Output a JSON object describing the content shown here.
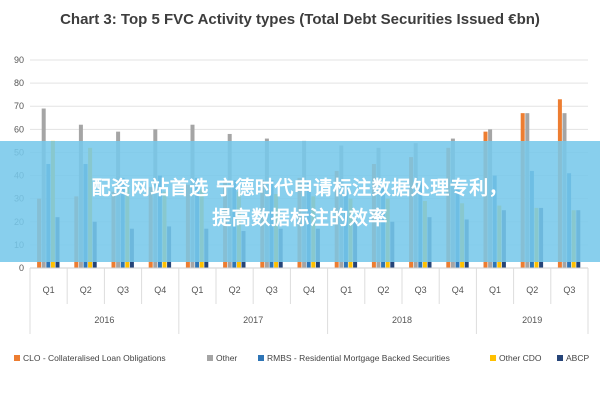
{
  "chart_data": {
    "type": "bar",
    "title": "Chart 3: Top 5 FVC Activity types (Total Debt Securities Issued €bn)",
    "ylim": [
      0,
      90
    ],
    "yticks": [
      0,
      10,
      20,
      30,
      40,
      50,
      60,
      70,
      80,
      90
    ],
    "categories": [
      "Q1",
      "Q2",
      "Q3",
      "Q4",
      "Q1",
      "Q2",
      "Q3",
      "Q4",
      "Q1",
      "Q2",
      "Q3",
      "Q4",
      "Q1",
      "Q2",
      "Q3"
    ],
    "years": [
      {
        "label": "2016",
        "quarters": 4
      },
      {
        "label": "2017",
        "quarters": 4
      },
      {
        "label": "2018",
        "quarters": 4
      },
      {
        "label": "2019",
        "quarters": 3
      }
    ],
    "grid": true,
    "legend_position": "bottom",
    "series": [
      {
        "name": "CLO - Collateralised Loan Obligations",
        "color": "#ed7d31",
        "values": [
          30,
          31,
          33,
          35,
          36,
          37,
          38,
          39,
          42,
          45,
          48,
          52,
          59,
          67,
          73
        ]
      },
      {
        "name": "Other",
        "color": "#a5a5a5",
        "values": [
          69,
          62,
          59,
          60,
          62,
          58,
          56,
          55,
          53,
          52,
          54,
          56,
          60,
          67,
          67
        ]
      },
      {
        "name": "RMBS - Residential Mortgage Backed Securities",
        "color": "#2e75b6",
        "values": [
          45,
          45,
          39,
          40,
          39,
          38,
          38,
          37,
          36,
          35,
          37,
          38,
          40,
          42,
          41
        ]
      },
      {
        "name": "Other CDO",
        "color": "#ffc000",
        "values": [
          55,
          52,
          35,
          33,
          34,
          33,
          32,
          31,
          30,
          30,
          29,
          28,
          27,
          26,
          25
        ]
      },
      {
        "name": "ABCP",
        "color": "#264478",
        "values": [
          22,
          20,
          17,
          18,
          17,
          16,
          17,
          17,
          21,
          20,
          22,
          21,
          25,
          26,
          25
        ]
      }
    ]
  },
  "overlay": {
    "line1": "配资网站首选 宁德时代申请标注数据处理专利，",
    "line2": "提高数据标注的效率"
  }
}
